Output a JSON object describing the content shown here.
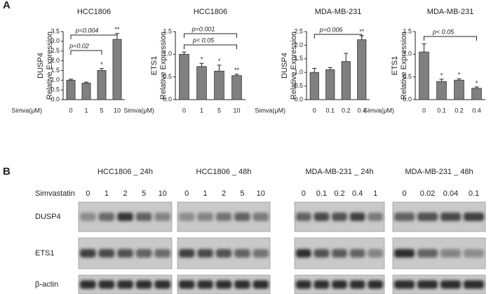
{
  "panel_labels": [
    "A",
    "B"
  ],
  "chart_data": [
    {
      "type": "bar",
      "title": "HCC1806",
      "y_label": [
        "DUSP4",
        "Relative Expression"
      ],
      "x_label": "Simva(μM)",
      "categories": [
        "0",
        "1",
        "5",
        "10"
      ],
      "values": [
        1.0,
        0.85,
        1.5,
        3.1
      ],
      "errors": [
        0.05,
        0.05,
        0.1,
        0.3
      ],
      "value_labels": [
        null,
        null,
        "*",
        "**"
      ],
      "annotations": [
        "p=0.02",
        "p=0.004"
      ],
      "color": "#808080",
      "ylim": [
        0,
        3.5
      ],
      "yticks": [
        {
          "value": 0,
          "label": "0.0"
        },
        0.5,
        {
          "value": 1,
          "label": "1.0"
        },
        1.5,
        {
          "value": 2,
          "label": "2.0"
        },
        2.5,
        {
          "value": 3,
          "label": "3.0"
        },
        3.5
      ]
    },
    {
      "type": "bar",
      "title": "HCC1806",
      "y_label": [
        "ETS1",
        "Relative Expression"
      ],
      "x_label": "Simva(μM)",
      "categories": [
        "0",
        "1",
        "5",
        "10"
      ],
      "values": [
        1.0,
        0.73,
        0.63,
        0.53
      ],
      "errors": [
        0.05,
        0.07,
        0.13,
        0.03
      ],
      "value_labels": [
        null,
        "*",
        "*",
        "**"
      ],
      "annotations": [
        "p< 0.05",
        "p=0.001"
      ],
      "color": "#808080",
      "ylim": [
        0,
        1.5
      ],
      "yticks": [
        {
          "value": 0,
          "label": "0.0"
        },
        0.5,
        {
          "value": 1,
          "label": "1.0"
        },
        1.5
      ]
    },
    {
      "type": "bar",
      "title": "MDA-MB-231",
      "y_label": [
        "DUSP4",
        "Relative Expression"
      ],
      "x_label": "Simva(μM)",
      "categories": [
        "0",
        "0.1",
        "0.2",
        "0.4"
      ],
      "values": [
        1.0,
        1.1,
        1.4,
        2.2
      ],
      "errors": [
        0.15,
        0.08,
        0.3,
        0.15
      ],
      "value_labels": [
        null,
        null,
        null,
        "**"
      ],
      "annotations": [
        "p=0.006"
      ],
      "color": "#808080",
      "ylim": [
        0,
        2.5
      ],
      "yticks": [
        {
          "value": 0,
          "label": "0.0"
        },
        0.5,
        {
          "value": 1,
          "label": "1.0"
        },
        1.5,
        {
          "value": 2,
          "label": "2.0"
        },
        2.5
      ]
    },
    {
      "type": "bar",
      "title": "MDA-MB-231",
      "y_label": [
        "ETS1",
        "Relative Expression"
      ],
      "x_label": "Simva(μM)",
      "categories": [
        "0",
        "0.1",
        "0.2",
        "0.4"
      ],
      "values": [
        1.05,
        0.4,
        0.43,
        0.25
      ],
      "errors": [
        0.18,
        0.05,
        0.03,
        0.03
      ],
      "value_labels": [
        null,
        "*",
        "*",
        "*"
      ],
      "annotations": [
        "p< 0.05"
      ],
      "color": "#808080",
      "ylim": [
        0,
        1.5
      ],
      "yticks": [
        {
          "value": 0,
          "label": "0.0"
        },
        0.5,
        {
          "value": 1,
          "label": "1.0"
        },
        1.5
      ]
    }
  ],
  "blots": {
    "treatment_label": "Simvastatin",
    "rows": [
      "DUSP4",
      "ETS1",
      "β-actin"
    ],
    "groups": [
      {
        "title": "HCC1806 _ 24h",
        "lanes": [
          "0",
          "1",
          "2",
          "5",
          "10"
        ]
      },
      {
        "title": "HCC1806 _ 48h",
        "lanes": [
          "0",
          "1",
          "2",
          "5",
          "10"
        ]
      },
      {
        "title": "MDA-MB-231 _ 24h",
        "lanes": [
          "0",
          "0.1",
          "0.2",
          "0.4",
          "1"
        ]
      },
      {
        "title": "MDA-MB-231 _ 48h",
        "lanes": [
          "0",
          "0.02",
          "0.04",
          "0.1"
        ]
      }
    ]
  }
}
